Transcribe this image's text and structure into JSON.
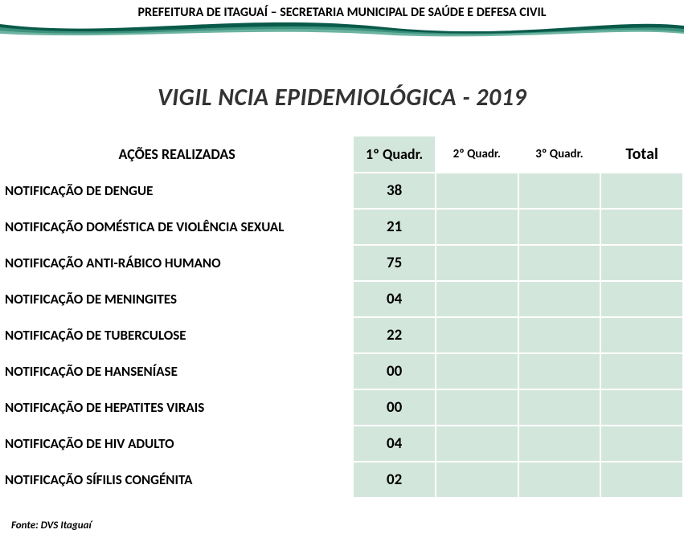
{
  "header": {
    "title": "PREFEITURA DE ITAGUAÍ – SECRETARIA MUNICIPAL DE SAÚDE E DEFESA  CIVIL"
  },
  "main_title": "VIGIL NCIA EPIDEMIOLÓGICA - 2019",
  "colors": {
    "wave_dark": "#0a5a4a",
    "wave_mid": "#207a66",
    "wave_light": "#49a08a",
    "header_q1_bg": "#d3e6dc",
    "header_rest_bg": "#ffffff",
    "cell_q1_bg": "#d3e6dc",
    "cell_rest_bg": "#d3e6dc",
    "row_label_bg": "#ffffff"
  },
  "table": {
    "columns": {
      "actions": "AÇÕES REALIZADAS",
      "q1": "1º Quadr.",
      "q2": "2º Quadr.",
      "q3": "3º Quadr.",
      "total": "Total"
    },
    "rows": [
      {
        "label": "NOTIFICAÇÃO DE DENGUE",
        "q1": "38",
        "q2": "",
        "q3": "",
        "total": ""
      },
      {
        "label": "NOTIFICAÇÃO DOMÉSTICA DE VIOLÊNCIA SEXUAL",
        "q1": "21",
        "q2": "",
        "q3": "",
        "total": ""
      },
      {
        "label": "NOTIFICAÇÃO ANTI-RÁBICO HUMANO",
        "q1": "75",
        "q2": "",
        "q3": "",
        "total": ""
      },
      {
        "label": "NOTIFICAÇÃO DE MENINGITES",
        "q1": "04",
        "q2": "",
        "q3": "",
        "total": ""
      },
      {
        "label": "NOTIFICAÇÃO DE TUBERCULOSE",
        "q1": "22",
        "q2": "",
        "q3": "",
        "total": ""
      },
      {
        "label": "NOTIFICAÇÃO DE HANSENÍASE",
        "q1": "00",
        "q2": "",
        "q3": "",
        "total": ""
      },
      {
        "label": "NOTIFICAÇÃO DE HEPATITES VIRAIS",
        "q1": "00",
        "q2": "",
        "q3": "",
        "total": ""
      },
      {
        "label": "NOTIFICAÇÃO DE HIV ADULTO",
        "q1": "04",
        "q2": "",
        "q3": "",
        "total": ""
      },
      {
        "label": "NOTIFICAÇÃO SÍFILIS CONGÉNITA",
        "q1": "02",
        "q2": "",
        "q3": "",
        "total": ""
      }
    ]
  },
  "footer": "Fonte: DVS Itaguaí"
}
